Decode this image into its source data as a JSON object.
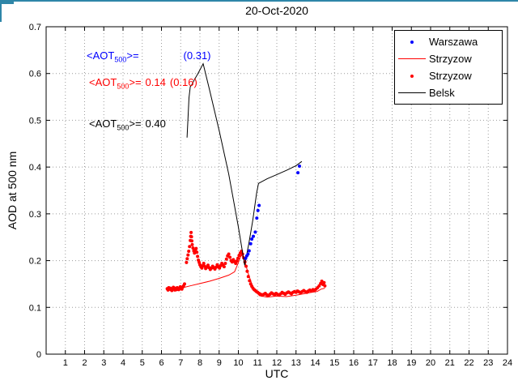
{
  "window": {
    "frame_accent": "#2e86a8"
  },
  "chart_data": {
    "type": "line",
    "title": "20-Oct-2020",
    "xlabel": "UTC",
    "ylabel": "AOD at 500 nm",
    "xlim": [
      0,
      24
    ],
    "ylim": [
      0,
      0.7
    ],
    "xticks": [
      1,
      2,
      3,
      4,
      5,
      6,
      7,
      8,
      9,
      10,
      11,
      12,
      13,
      14,
      15,
      16,
      17,
      18,
      19,
      20,
      21,
      22,
      23,
      24
    ],
    "yticks": [
      0,
      0.1,
      0.2,
      0.3,
      0.4,
      0.5,
      0.6,
      0.7
    ],
    "ytick_labels": [
      "0",
      "0.1",
      "0.2",
      "0.3",
      "0.4",
      "0.5",
      "0.6",
      "0.7"
    ],
    "grid": true,
    "legend_position": "top-right",
    "colors": {
      "warszawa": "#0000ff",
      "strzyzow": "#ff0000",
      "belsk": "#000000",
      "grid": "#9c9c9c"
    },
    "legend": {
      "entries": [
        {
          "label": "Warszawa",
          "marker": "dot",
          "color": "#0000ff"
        },
        {
          "label": "Strzyzow",
          "marker": "line",
          "color": "#ff0000"
        },
        {
          "label": "Strzyzow",
          "marker": "dot",
          "color": "#ff0000"
        },
        {
          "label": "Belsk",
          "marker": "line",
          "color": "#000000"
        }
      ]
    },
    "annotations": [
      {
        "color": "#0000ff",
        "prefix": "<AOT",
        "sub": "500",
        "mid": ">=",
        "value": "",
        "paren": "(0.31)"
      },
      {
        "color": "#ff0000",
        "prefix": "<AOT",
        "sub": "500",
        "mid": ">=",
        "value": "0.14",
        "paren": "(0.16)"
      },
      {
        "color": "#000000",
        "prefix": "<AOT",
        "sub": "500",
        "mid": ">=",
        "value": "0.40",
        "paren": ""
      }
    ],
    "series": [
      {
        "id": "strzyzow-line",
        "name": "Strzyzow",
        "type": "line",
        "color": "#ff0000",
        "points": [
          [
            6.3,
            0.137
          ],
          [
            7.0,
            0.141
          ],
          [
            7.5,
            0.146
          ],
          [
            8.0,
            0.151
          ],
          [
            8.5,
            0.156
          ],
          [
            9.0,
            0.162
          ],
          [
            9.5,
            0.169
          ],
          [
            9.8,
            0.176
          ],
          [
            10.0,
            0.196
          ],
          [
            10.15,
            0.212
          ],
          [
            10.3,
            0.204
          ],
          [
            10.5,
            0.174
          ],
          [
            10.7,
            0.15
          ],
          [
            10.9,
            0.134
          ],
          [
            11.1,
            0.125
          ],
          [
            11.5,
            0.122
          ],
          [
            12.0,
            0.124
          ],
          [
            12.5,
            0.123
          ],
          [
            13.0,
            0.126
          ],
          [
            13.4,
            0.129
          ],
          [
            13.8,
            0.132
          ],
          [
            14.1,
            0.134
          ],
          [
            14.3,
            0.139
          ],
          [
            14.5,
            0.141
          ]
        ]
      },
      {
        "id": "strzyzow-dots",
        "name": "Strzyzow",
        "type": "scatter",
        "color": "#ff0000",
        "marker_size": 2,
        "points": [
          [
            6.3,
            0.14
          ],
          [
            6.34,
            0.137
          ],
          [
            6.38,
            0.142
          ],
          [
            6.42,
            0.139
          ],
          [
            6.46,
            0.141
          ],
          [
            6.5,
            0.138
          ],
          [
            6.54,
            0.136
          ],
          [
            6.58,
            0.14
          ],
          [
            6.62,
            0.143
          ],
          [
            6.66,
            0.139
          ],
          [
            6.7,
            0.137
          ],
          [
            6.74,
            0.141
          ],
          [
            6.78,
            0.138
          ],
          [
            6.82,
            0.142
          ],
          [
            6.86,
            0.14
          ],
          [
            6.9,
            0.138
          ],
          [
            6.94,
            0.141
          ],
          [
            6.98,
            0.144
          ],
          [
            7.02,
            0.141
          ],
          [
            7.06,
            0.139
          ],
          [
            7.1,
            0.143
          ],
          [
            7.15,
            0.146
          ],
          [
            7.2,
            0.15
          ],
          [
            7.3,
            0.196
          ],
          [
            7.34,
            0.204
          ],
          [
            7.38,
            0.212
          ],
          [
            7.42,
            0.22
          ],
          [
            7.46,
            0.23
          ],
          [
            7.5,
            0.243
          ],
          [
            7.52,
            0.252
          ],
          [
            7.54,
            0.26
          ],
          [
            7.56,
            0.251
          ],
          [
            7.58,
            0.242
          ],
          [
            7.6,
            0.234
          ],
          [
            7.64,
            0.227
          ],
          [
            7.68,
            0.221
          ],
          [
            7.72,
            0.216
          ],
          [
            7.76,
            0.222
          ],
          [
            7.8,
            0.226
          ],
          [
            7.84,
            0.218
          ],
          [
            7.88,
            0.209
          ],
          [
            7.92,
            0.201
          ],
          [
            7.96,
            0.196
          ],
          [
            8.0,
            0.191
          ],
          [
            8.05,
            0.187
          ],
          [
            8.1,
            0.184
          ],
          [
            8.15,
            0.189
          ],
          [
            8.2,
            0.194
          ],
          [
            8.25,
            0.188
          ],
          [
            8.3,
            0.183
          ],
          [
            8.36,
            0.186
          ],
          [
            8.42,
            0.19
          ],
          [
            8.48,
            0.185
          ],
          [
            8.54,
            0.181
          ],
          [
            8.6,
            0.184
          ],
          [
            8.66,
            0.188
          ],
          [
            8.72,
            0.185
          ],
          [
            8.78,
            0.182
          ],
          [
            8.84,
            0.186
          ],
          [
            8.9,
            0.191
          ],
          [
            8.96,
            0.187
          ],
          [
            9.02,
            0.184
          ],
          [
            9.08,
            0.189
          ],
          [
            9.14,
            0.194
          ],
          [
            9.2,
            0.19
          ],
          [
            9.26,
            0.187
          ],
          [
            9.32,
            0.194
          ],
          [
            9.38,
            0.203
          ],
          [
            9.44,
            0.21
          ],
          [
            9.5,
            0.214
          ],
          [
            9.56,
            0.207
          ],
          [
            9.62,
            0.2
          ],
          [
            9.68,
            0.197
          ],
          [
            9.74,
            0.202
          ],
          [
            9.8,
            0.198
          ],
          [
            9.86,
            0.194
          ],
          [
            9.92,
            0.199
          ],
          [
            9.98,
            0.205
          ],
          [
            10.04,
            0.211
          ],
          [
            10.1,
            0.216
          ],
          [
            10.16,
            0.22
          ],
          [
            10.22,
            0.214
          ],
          [
            10.28,
            0.206
          ],
          [
            10.34,
            0.197
          ],
          [
            10.4,
            0.188
          ],
          [
            10.46,
            0.177
          ],
          [
            10.52,
            0.166
          ],
          [
            10.58,
            0.157
          ],
          [
            10.64,
            0.15
          ],
          [
            10.7,
            0.145
          ],
          [
            10.76,
            0.141
          ],
          [
            10.82,
            0.138
          ],
          [
            10.88,
            0.136
          ],
          [
            10.94,
            0.134
          ],
          [
            11.0,
            0.132
          ],
          [
            11.08,
            0.13
          ],
          [
            11.16,
            0.128
          ],
          [
            11.24,
            0.126
          ],
          [
            11.32,
            0.128
          ],
          [
            11.4,
            0.13
          ],
          [
            11.48,
            0.127
          ],
          [
            11.56,
            0.125
          ],
          [
            11.64,
            0.128
          ],
          [
            11.72,
            0.131
          ],
          [
            11.8,
            0.129
          ],
          [
            11.88,
            0.127
          ],
          [
            11.96,
            0.13
          ],
          [
            12.04,
            0.128
          ],
          [
            12.12,
            0.126
          ],
          [
            12.2,
            0.129
          ],
          [
            12.28,
            0.132
          ],
          [
            12.36,
            0.13
          ],
          [
            12.44,
            0.128
          ],
          [
            12.52,
            0.131
          ],
          [
            12.6,
            0.133
          ],
          [
            12.68,
            0.131
          ],
          [
            12.76,
            0.129
          ],
          [
            12.84,
            0.132
          ],
          [
            12.92,
            0.134
          ],
          [
            13.0,
            0.132
          ],
          [
            13.08,
            0.135
          ],
          [
            13.16,
            0.133
          ],
          [
            13.24,
            0.131
          ],
          [
            13.32,
            0.134
          ],
          [
            13.4,
            0.136
          ],
          [
            13.48,
            0.134
          ],
          [
            13.56,
            0.132
          ],
          [
            13.64,
            0.135
          ],
          [
            13.72,
            0.137
          ],
          [
            13.8,
            0.135
          ],
          [
            13.88,
            0.138
          ],
          [
            13.96,
            0.136
          ],
          [
            14.04,
            0.139
          ],
          [
            14.12,
            0.142
          ],
          [
            14.2,
            0.146
          ],
          [
            14.28,
            0.151
          ],
          [
            14.34,
            0.156
          ],
          [
            14.4,
            0.149
          ],
          [
            14.46,
            0.153
          ],
          [
            14.5,
            0.146
          ]
        ]
      },
      {
        "id": "belsk-line",
        "name": "Belsk",
        "type": "line",
        "color": "#000000",
        "points": [
          [
            7.33,
            0.463
          ],
          [
            7.38,
            0.505
          ],
          [
            7.43,
            0.548
          ],
          [
            7.5,
            0.572
          ],
          [
            7.58,
            0.576
          ],
          [
            7.7,
            0.586
          ],
          [
            7.9,
            0.6
          ],
          [
            8.17,
            0.621
          ],
          [
            8.5,
            0.565
          ],
          [
            9.0,
            0.478
          ],
          [
            9.5,
            0.385
          ],
          [
            10.0,
            0.272
          ],
          [
            10.33,
            0.19
          ],
          [
            10.55,
            0.238
          ],
          [
            10.75,
            0.286
          ],
          [
            10.95,
            0.345
          ],
          [
            11.05,
            0.365
          ],
          [
            11.5,
            0.375
          ],
          [
            12.0,
            0.384
          ],
          [
            12.5,
            0.393
          ],
          [
            13.0,
            0.403
          ],
          [
            13.3,
            0.412
          ]
        ]
      },
      {
        "id": "warszawa-dots",
        "name": "Warszawa",
        "type": "scatter",
        "color": "#0000ff",
        "marker_size": 2,
        "points": [
          [
            10.38,
            0.205
          ],
          [
            10.44,
            0.21
          ],
          [
            10.5,
            0.214
          ],
          [
            10.56,
            0.221
          ],
          [
            10.64,
            0.236
          ],
          [
            10.7,
            0.246
          ],
          [
            10.78,
            0.252
          ],
          [
            10.88,
            0.261
          ],
          [
            10.96,
            0.291
          ],
          [
            11.02,
            0.307
          ],
          [
            11.08,
            0.318
          ],
          [
            13.1,
            0.388
          ],
          [
            13.18,
            0.402
          ]
        ]
      }
    ]
  }
}
